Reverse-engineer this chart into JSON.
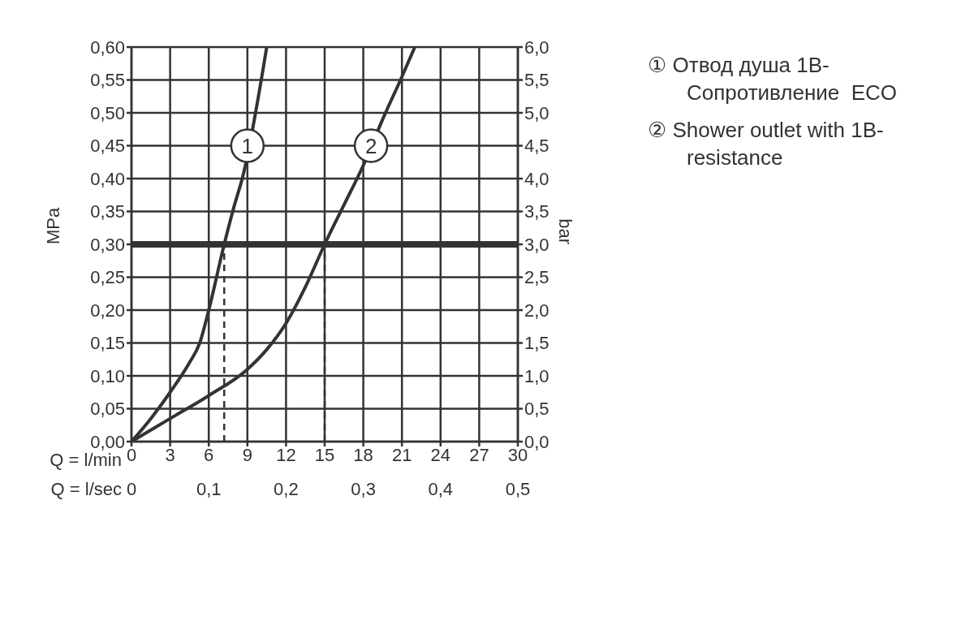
{
  "chart_data": {
    "type": "line",
    "xlabel": "Q = l/min",
    "x2label": "Q = l/sec",
    "ylabel": "MPa",
    "y2label": "bar",
    "xlim": [
      0,
      30
    ],
    "xticks": [
      0,
      3,
      6,
      9,
      12,
      15,
      18,
      21,
      24,
      27,
      30
    ],
    "x2lim": [
      0,
      0.5
    ],
    "x2ticks": [
      0,
      {
        "value": 0.1,
        "label": "0,1"
      },
      {
        "value": 0.2,
        "label": "0,2"
      },
      {
        "value": 0.3,
        "label": "0,3"
      },
      {
        "value": 0.4,
        "label": "0,4"
      },
      {
        "value": 0.5,
        "label": "0,5"
      }
    ],
    "ylim": [
      0,
      0.6
    ],
    "yticks": [
      {
        "value": 0,
        "label": "0,00"
      },
      {
        "value": 0.05,
        "label": "0,05"
      },
      {
        "value": 0.1,
        "label": "0,10"
      },
      {
        "value": 0.15,
        "label": "0,15"
      },
      {
        "value": 0.2,
        "label": "0,20"
      },
      {
        "value": 0.25,
        "label": "0,25"
      },
      {
        "value": 0.3,
        "label": "0,30"
      },
      {
        "value": 0.35,
        "label": "0,35"
      },
      {
        "value": 0.4,
        "label": "0,40"
      },
      {
        "value": 0.45,
        "label": "0,45"
      },
      {
        "value": 0.5,
        "label": "0,50"
      },
      {
        "value": 0.55,
        "label": "0,55"
      },
      {
        "value": 0.6,
        "label": "0,60"
      }
    ],
    "y2lim": [
      0,
      6
    ],
    "y2ticks": [
      {
        "value": 0,
        "label": "0,0"
      },
      {
        "value": 0.5,
        "label": "0,5"
      },
      {
        "value": 1,
        "label": "1,0"
      },
      {
        "value": 1.5,
        "label": "1,5"
      },
      {
        "value": 2,
        "label": "2,0"
      },
      {
        "value": 2.5,
        "label": "2,5"
      },
      {
        "value": 3,
        "label": "3,0"
      },
      {
        "value": 3.5,
        "label": "3,5"
      },
      {
        "value": 4,
        "label": "4,0"
      },
      {
        "value": 4.5,
        "label": "4,5"
      },
      {
        "value": 5,
        "label": "5,0"
      },
      {
        "value": 5.5,
        "label": "5,5"
      },
      {
        "value": 6,
        "label": "6,0"
      }
    ],
    "grid": true,
    "legend": "right",
    "marker": "none",
    "series": [
      {
        "name": "① Отвод душа 1B-Сопротивление  ECO",
        "color": "#333333",
        "x": [
          0,
          1.5,
          3,
          4.5,
          5.3,
          6,
          7.2,
          8,
          8.6,
          10.5
        ],
        "values": [
          0,
          0.035,
          0.075,
          0.12,
          0.15,
          0.2,
          0.3,
          0.36,
          0.4,
          0.6
        ]
      },
      {
        "name": "② Shower outlet with 1B-resistance",
        "color": "#333333",
        "x": [
          0,
          3,
          6,
          9,
          10.5,
          12,
          13.5,
          15,
          16.5,
          18,
          19.5,
          21,
          22
        ],
        "values": [
          0,
          0.035,
          0.07,
          0.11,
          0.14,
          0.18,
          0.235,
          0.3,
          0.36,
          0.42,
          0.49,
          0.555,
          0.6
        ]
      }
    ],
    "ref_lines": [
      {
        "axis": "y",
        "value": 0.3,
        "color": "#333333",
        "line_style": "solid"
      },
      {
        "axis": "x",
        "value": 7.2,
        "color": "#333333",
        "line_style": "dashed"
      },
      {
        "axis": "x",
        "value": 15,
        "color": "#333333",
        "line_style": "dashed"
      }
    ],
    "annotations": [
      {
        "text": "1",
        "x": 9,
        "y": 0.45
      },
      {
        "text": "2",
        "x": 18.6,
        "y": 0.45
      }
    ]
  }
}
